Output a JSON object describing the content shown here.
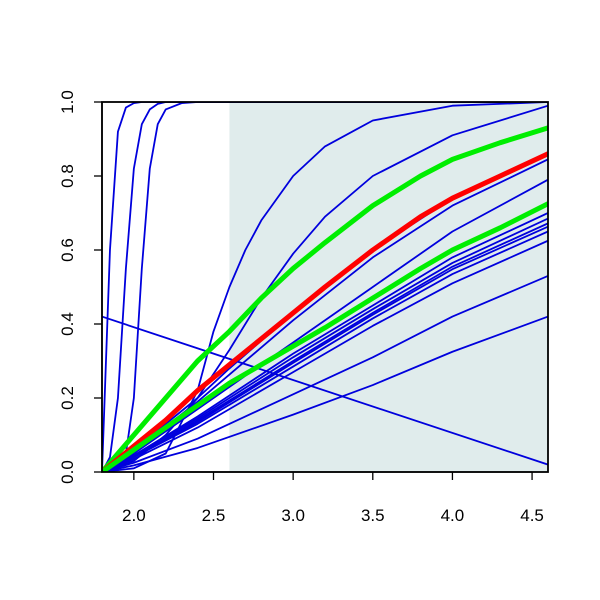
{
  "chart_data": {
    "type": "line",
    "title": "",
    "xlabel": "",
    "ylabel": "",
    "xlim": [
      1.8,
      4.6
    ],
    "ylim": [
      0.0,
      1.0
    ],
    "x_ticks": [
      "2.0",
      "2.5",
      "3.0",
      "3.5",
      "4.0",
      "4.5"
    ],
    "y_ticks": [
      "0.0",
      "0.2",
      "0.4",
      "0.6",
      "0.8",
      "1.0"
    ],
    "shaded_region": {
      "x": [
        2.6,
        4.6
      ],
      "y": [
        0.0,
        1.0
      ],
      "color": "#e0ecec"
    },
    "colors": {
      "blue": "#0000dd",
      "red": "#ff0000",
      "green": "#00ee00",
      "axis": "#000000"
    },
    "series": [
      {
        "color": "blue",
        "highlight": false,
        "x": [
          1.8,
          1.85,
          1.9,
          1.95,
          2.0,
          2.05,
          2.1,
          2.2,
          2.3,
          4.6
        ],
        "y": [
          0.0,
          0.6,
          0.92,
          0.985,
          0.997,
          1.0,
          1.0,
          1.0,
          1.0,
          1.0
        ]
      },
      {
        "color": "blue",
        "highlight": false,
        "x": [
          1.8,
          1.85,
          1.9,
          1.95,
          2.0,
          2.05,
          2.1,
          2.15,
          2.2,
          2.3,
          4.6
        ],
        "y": [
          0.0,
          0.04,
          0.2,
          0.55,
          0.82,
          0.94,
          0.98,
          0.995,
          1.0,
          1.0,
          1.0
        ]
      },
      {
        "color": "blue",
        "highlight": false,
        "x": [
          1.8,
          1.9,
          1.95,
          2.0,
          2.05,
          2.1,
          2.15,
          2.2,
          2.3,
          2.4,
          4.6
        ],
        "y": [
          0.0,
          0.01,
          0.05,
          0.2,
          0.55,
          0.82,
          0.94,
          0.98,
          0.997,
          1.0,
          1.0
        ]
      },
      {
        "color": "blue",
        "highlight": false,
        "x": [
          1.8,
          2.0,
          2.2,
          2.4,
          2.5,
          2.6,
          2.7,
          2.8,
          3.0,
          3.2,
          3.5,
          4.0,
          4.6
        ],
        "y": [
          0.0,
          0.01,
          0.05,
          0.22,
          0.38,
          0.5,
          0.6,
          0.68,
          0.8,
          0.88,
          0.95,
          0.99,
          1.0
        ]
      },
      {
        "color": "blue",
        "highlight": false,
        "x": [
          1.8,
          2.0,
          2.2,
          2.4,
          2.6,
          2.8,
          3.0,
          3.2,
          3.5,
          4.0,
          4.6
        ],
        "y": [
          0.0,
          0.03,
          0.1,
          0.2,
          0.33,
          0.47,
          0.59,
          0.69,
          0.8,
          0.91,
          0.99
        ]
      },
      {
        "color": "blue",
        "highlight": false,
        "x": [
          1.8,
          2.0,
          2.4,
          2.6,
          3.0,
          3.5,
          4.0,
          4.6
        ],
        "y": [
          0.0,
          0.06,
          0.2,
          0.28,
          0.43,
          0.6,
          0.74,
          0.86
        ]
      },
      {
        "color": "blue",
        "highlight": false,
        "x": [
          1.8,
          2.0,
          2.4,
          3.0,
          3.5,
          4.0,
          4.6
        ],
        "y": [
          0.0,
          0.055,
          0.19,
          0.41,
          0.58,
          0.72,
          0.845
        ]
      },
      {
        "color": "blue",
        "highlight": false,
        "x": [
          1.8,
          2.0,
          2.4,
          3.0,
          3.5,
          4.0,
          4.6
        ],
        "y": [
          0.0,
          0.05,
          0.17,
          0.35,
          0.5,
          0.65,
          0.79
        ]
      },
      {
        "color": "blue",
        "highlight": false,
        "x": [
          1.8,
          2.0,
          2.4,
          3.0,
          3.5,
          4.0,
          4.6
        ],
        "y": [
          0.0,
          0.045,
          0.15,
          0.32,
          0.45,
          0.58,
          0.7
        ]
      },
      {
        "color": "blue",
        "highlight": false,
        "x": [
          1.8,
          2.0,
          2.4,
          3.0,
          3.5,
          4.0,
          4.6
        ],
        "y": [
          0.0,
          0.045,
          0.145,
          0.31,
          0.44,
          0.565,
          0.685
        ]
      },
      {
        "color": "blue",
        "highlight": false,
        "x": [
          1.8,
          2.0,
          2.4,
          3.0,
          3.5,
          4.0,
          4.6
        ],
        "y": [
          0.0,
          0.04,
          0.14,
          0.3,
          0.43,
          0.555,
          0.672
        ]
      },
      {
        "color": "blue",
        "highlight": false,
        "x": [
          1.8,
          2.0,
          2.4,
          3.0,
          3.5,
          4.0,
          4.6
        ],
        "y": [
          0.0,
          0.04,
          0.135,
          0.295,
          0.425,
          0.548,
          0.663
        ]
      },
      {
        "color": "blue",
        "highlight": false,
        "x": [
          1.8,
          2.0,
          2.4,
          3.0,
          3.5,
          4.0,
          4.6
        ],
        "y": [
          0.0,
          0.04,
          0.13,
          0.285,
          0.415,
          0.535,
          0.65
        ]
      },
      {
        "color": "blue",
        "highlight": false,
        "x": [
          1.8,
          2.0,
          2.4,
          3.0,
          3.5,
          4.0,
          4.6
        ],
        "y": [
          0.0,
          0.035,
          0.12,
          0.27,
          0.395,
          0.51,
          0.625
        ]
      },
      {
        "color": "blue",
        "highlight": false,
        "x": [
          1.8,
          2.0,
          2.4,
          3.0,
          3.5,
          4.0,
          4.6
        ],
        "y": [
          0.0,
          0.025,
          0.09,
          0.21,
          0.31,
          0.42,
          0.53
        ]
      },
      {
        "color": "blue",
        "highlight": false,
        "x": [
          1.8,
          2.0,
          2.4,
          3.0,
          3.5,
          4.0,
          4.6
        ],
        "y": [
          0.0,
          0.018,
          0.065,
          0.155,
          0.235,
          0.325,
          0.42
        ]
      },
      {
        "color": "blue",
        "highlight": false,
        "x": [
          1.8,
          4.6
        ],
        "y": [
          0.42,
          0.02
        ]
      },
      {
        "color": "green",
        "highlight": true,
        "x": [
          1.8,
          2.0,
          2.2,
          2.4,
          2.6,
          2.8,
          3.0,
          3.2,
          3.5,
          3.8,
          4.0,
          4.3,
          4.6
        ],
        "y": [
          0.0,
          0.1,
          0.2,
          0.3,
          0.38,
          0.47,
          0.55,
          0.62,
          0.72,
          0.8,
          0.845,
          0.89,
          0.93
        ]
      },
      {
        "color": "red",
        "highlight": true,
        "x": [
          1.8,
          2.0,
          2.2,
          2.4,
          2.6,
          2.8,
          3.0,
          3.2,
          3.5,
          3.8,
          4.0,
          4.3,
          4.6
        ],
        "y": [
          0.0,
          0.07,
          0.14,
          0.22,
          0.29,
          0.36,
          0.43,
          0.5,
          0.6,
          0.69,
          0.74,
          0.8,
          0.86
        ]
      },
      {
        "color": "green",
        "highlight": true,
        "x": [
          1.8,
          2.0,
          2.2,
          2.4,
          2.6,
          2.8,
          3.0,
          3.2,
          3.5,
          3.8,
          4.0,
          4.3,
          4.6
        ],
        "y": [
          0.0,
          0.06,
          0.12,
          0.18,
          0.24,
          0.29,
          0.34,
          0.39,
          0.47,
          0.55,
          0.6,
          0.66,
          0.725
        ]
      }
    ]
  }
}
